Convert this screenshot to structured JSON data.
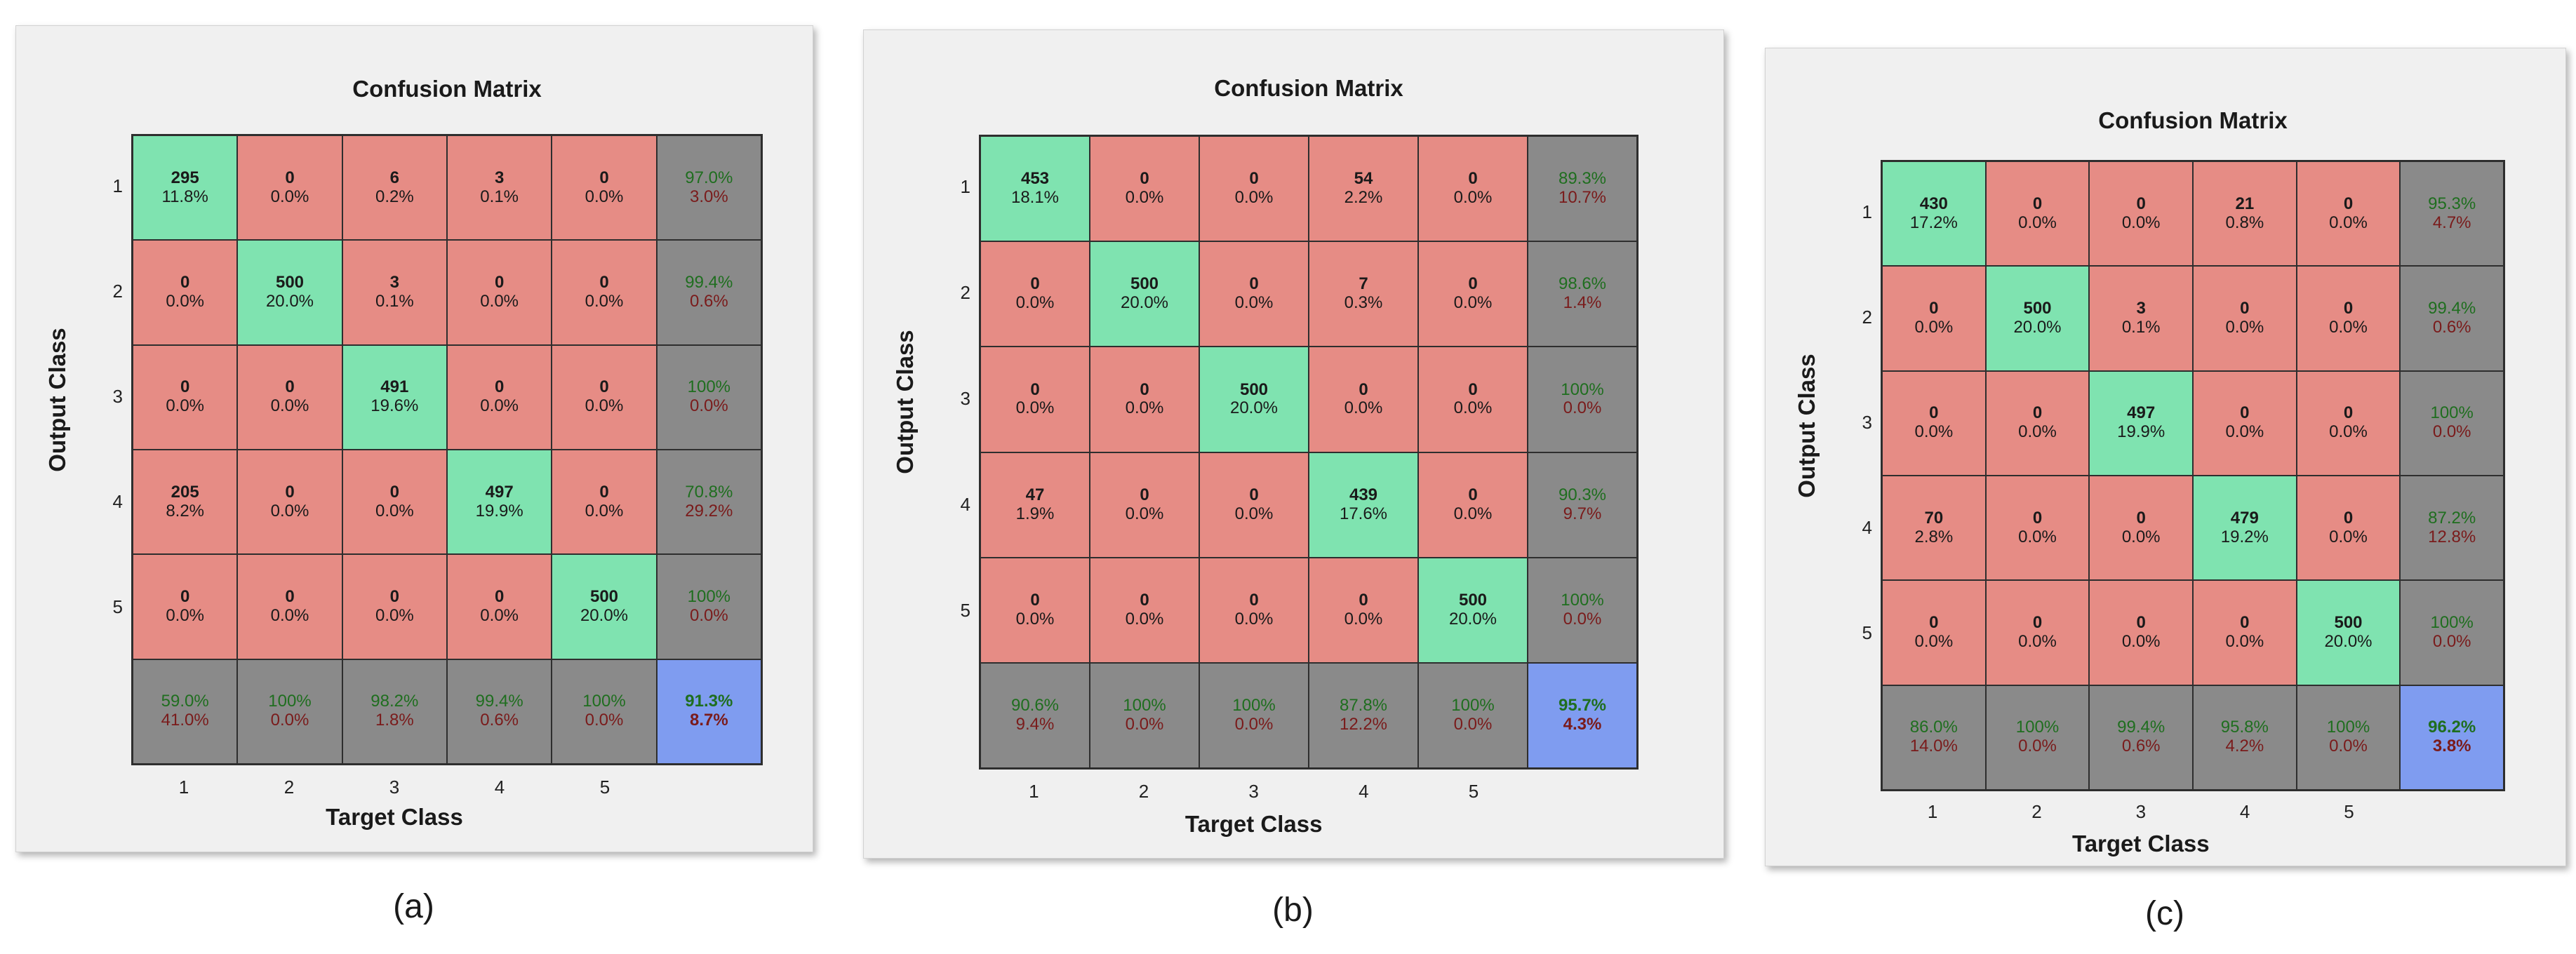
{
  "chart_data": [
    {
      "type": "heatmap",
      "id": "a",
      "title": "Confusion Matrix",
      "xlabel": "Target Class",
      "ylabel": "Output Class",
      "caption": "(a)",
      "x_ticks": [
        "1",
        "2",
        "3",
        "4",
        "5"
      ],
      "y_ticks": [
        "1",
        "2",
        "3",
        "4",
        "5"
      ],
      "rows": [
        {
          "cells": [
            {
              "count": "295",
              "pct": "11.8%"
            },
            {
              "count": "0",
              "pct": "0.0%"
            },
            {
              "count": "6",
              "pct": "0.2%"
            },
            {
              "count": "3",
              "pct": "0.1%"
            },
            {
              "count": "0",
              "pct": "0.0%"
            }
          ],
          "summary": {
            "correct": "97.0%",
            "error": "3.0%"
          }
        },
        {
          "cells": [
            {
              "count": "0",
              "pct": "0.0%"
            },
            {
              "count": "500",
              "pct": "20.0%"
            },
            {
              "count": "3",
              "pct": "0.1%"
            },
            {
              "count": "0",
              "pct": "0.0%"
            },
            {
              "count": "0",
              "pct": "0.0%"
            }
          ],
          "summary": {
            "correct": "99.4%",
            "error": "0.6%"
          }
        },
        {
          "cells": [
            {
              "count": "0",
              "pct": "0.0%"
            },
            {
              "count": "0",
              "pct": "0.0%"
            },
            {
              "count": "491",
              "pct": "19.6%"
            },
            {
              "count": "0",
              "pct": "0.0%"
            },
            {
              "count": "0",
              "pct": "0.0%"
            }
          ],
          "summary": {
            "correct": "100%",
            "error": "0.0%"
          }
        },
        {
          "cells": [
            {
              "count": "205",
              "pct": "8.2%"
            },
            {
              "count": "0",
              "pct": "0.0%"
            },
            {
              "count": "0",
              "pct": "0.0%"
            },
            {
              "count": "497",
              "pct": "19.9%"
            },
            {
              "count": "0",
              "pct": "0.0%"
            }
          ],
          "summary": {
            "correct": "70.8%",
            "error": "29.2%"
          }
        },
        {
          "cells": [
            {
              "count": "0",
              "pct": "0.0%"
            },
            {
              "count": "0",
              "pct": "0.0%"
            },
            {
              "count": "0",
              "pct": "0.0%"
            },
            {
              "count": "0",
              "pct": "0.0%"
            },
            {
              "count": "500",
              "pct": "20.0%"
            }
          ],
          "summary": {
            "correct": "100%",
            "error": "0.0%"
          }
        }
      ],
      "column_summary": [
        {
          "correct": "59.0%",
          "error": "41.0%"
        },
        {
          "correct": "100%",
          "error": "0.0%"
        },
        {
          "correct": "98.2%",
          "error": "1.8%"
        },
        {
          "correct": "99.4%",
          "error": "0.6%"
        },
        {
          "correct": "100%",
          "error": "0.0%"
        }
      ],
      "overall": {
        "correct": "91.3%",
        "error": "8.7%"
      }
    },
    {
      "type": "heatmap",
      "id": "b",
      "title": "Confusion Matrix",
      "xlabel": "Target Class",
      "ylabel": "Output Class",
      "caption": "(b)",
      "x_ticks": [
        "1",
        "2",
        "3",
        "4",
        "5"
      ],
      "y_ticks": [
        "1",
        "2",
        "3",
        "4",
        "5"
      ],
      "rows": [
        {
          "cells": [
            {
              "count": "453",
              "pct": "18.1%"
            },
            {
              "count": "0",
              "pct": "0.0%"
            },
            {
              "count": "0",
              "pct": "0.0%"
            },
            {
              "count": "54",
              "pct": "2.2%"
            },
            {
              "count": "0",
              "pct": "0.0%"
            }
          ],
          "summary": {
            "correct": "89.3%",
            "error": "10.7%"
          }
        },
        {
          "cells": [
            {
              "count": "0",
              "pct": "0.0%"
            },
            {
              "count": "500",
              "pct": "20.0%"
            },
            {
              "count": "0",
              "pct": "0.0%"
            },
            {
              "count": "7",
              "pct": "0.3%"
            },
            {
              "count": "0",
              "pct": "0.0%"
            }
          ],
          "summary": {
            "correct": "98.6%",
            "error": "1.4%"
          }
        },
        {
          "cells": [
            {
              "count": "0",
              "pct": "0.0%"
            },
            {
              "count": "0",
              "pct": "0.0%"
            },
            {
              "count": "500",
              "pct": "20.0%"
            },
            {
              "count": "0",
              "pct": "0.0%"
            },
            {
              "count": "0",
              "pct": "0.0%"
            }
          ],
          "summary": {
            "correct": "100%",
            "error": "0.0%"
          }
        },
        {
          "cells": [
            {
              "count": "47",
              "pct": "1.9%"
            },
            {
              "count": "0",
              "pct": "0.0%"
            },
            {
              "count": "0",
              "pct": "0.0%"
            },
            {
              "count": "439",
              "pct": "17.6%"
            },
            {
              "count": "0",
              "pct": "0.0%"
            }
          ],
          "summary": {
            "correct": "90.3%",
            "error": "9.7%"
          }
        },
        {
          "cells": [
            {
              "count": "0",
              "pct": "0.0%"
            },
            {
              "count": "0",
              "pct": "0.0%"
            },
            {
              "count": "0",
              "pct": "0.0%"
            },
            {
              "count": "0",
              "pct": "0.0%"
            },
            {
              "count": "500",
              "pct": "20.0%"
            }
          ],
          "summary": {
            "correct": "100%",
            "error": "0.0%"
          }
        }
      ],
      "column_summary": [
        {
          "correct": "90.6%",
          "error": "9.4%"
        },
        {
          "correct": "100%",
          "error": "0.0%"
        },
        {
          "correct": "100%",
          "error": "0.0%"
        },
        {
          "correct": "87.8%",
          "error": "12.2%"
        },
        {
          "correct": "100%",
          "error": "0.0%"
        }
      ],
      "overall": {
        "correct": "95.7%",
        "error": "4.3%"
      }
    },
    {
      "type": "heatmap",
      "id": "c",
      "title": "Confusion Matrix",
      "xlabel": "Target Class",
      "ylabel": "Output Class",
      "caption": "(c)",
      "x_ticks": [
        "1",
        "2",
        "3",
        "4",
        "5"
      ],
      "y_ticks": [
        "1",
        "2",
        "3",
        "4",
        "5"
      ],
      "rows": [
        {
          "cells": [
            {
              "count": "430",
              "pct": "17.2%"
            },
            {
              "count": "0",
              "pct": "0.0%"
            },
            {
              "count": "0",
              "pct": "0.0%"
            },
            {
              "count": "21",
              "pct": "0.8%"
            },
            {
              "count": "0",
              "pct": "0.0%"
            }
          ],
          "summary": {
            "correct": "95.3%",
            "error": "4.7%"
          }
        },
        {
          "cells": [
            {
              "count": "0",
              "pct": "0.0%"
            },
            {
              "count": "500",
              "pct": "20.0%"
            },
            {
              "count": "3",
              "pct": "0.1%"
            },
            {
              "count": "0",
              "pct": "0.0%"
            },
            {
              "count": "0",
              "pct": "0.0%"
            }
          ],
          "summary": {
            "correct": "99.4%",
            "error": "0.6%"
          }
        },
        {
          "cells": [
            {
              "count": "0",
              "pct": "0.0%"
            },
            {
              "count": "0",
              "pct": "0.0%"
            },
            {
              "count": "497",
              "pct": "19.9%"
            },
            {
              "count": "0",
              "pct": "0.0%"
            },
            {
              "count": "0",
              "pct": "0.0%"
            }
          ],
          "summary": {
            "correct": "100%",
            "error": "0.0%"
          }
        },
        {
          "cells": [
            {
              "count": "70",
              "pct": "2.8%"
            },
            {
              "count": "0",
              "pct": "0.0%"
            },
            {
              "count": "0",
              "pct": "0.0%"
            },
            {
              "count": "479",
              "pct": "19.2%"
            },
            {
              "count": "0",
              "pct": "0.0%"
            }
          ],
          "summary": {
            "correct": "87.2%",
            "error": "12.8%"
          }
        },
        {
          "cells": [
            {
              "count": "0",
              "pct": "0.0%"
            },
            {
              "count": "0",
              "pct": "0.0%"
            },
            {
              "count": "0",
              "pct": "0.0%"
            },
            {
              "count": "0",
              "pct": "0.0%"
            },
            {
              "count": "500",
              "pct": "20.0%"
            }
          ],
          "summary": {
            "correct": "100%",
            "error": "0.0%"
          }
        }
      ],
      "column_summary": [
        {
          "correct": "86.0%",
          "error": "14.0%"
        },
        {
          "correct": "100%",
          "error": "0.0%"
        },
        {
          "correct": "99.4%",
          "error": "0.6%"
        },
        {
          "correct": "95.8%",
          "error": "4.2%"
        },
        {
          "correct": "100%",
          "error": "0.0%"
        }
      ],
      "overall": {
        "correct": "96.2%",
        "error": "3.8%"
      }
    }
  ]
}
